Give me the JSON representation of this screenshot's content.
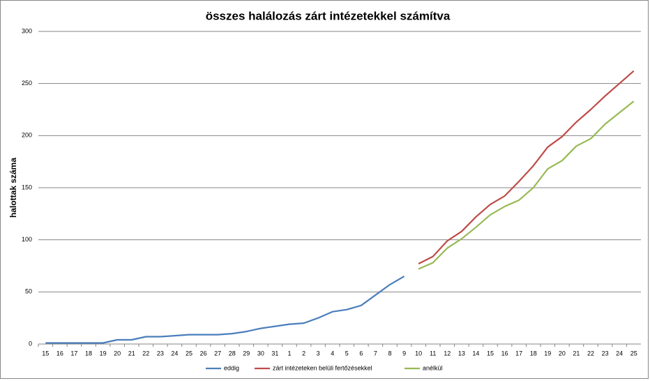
{
  "chart_data": {
    "type": "line",
    "title": "összes halálozás zárt intézetekkel számítva",
    "y_label": "halottak száma",
    "categories": [
      "15",
      "16",
      "17",
      "18",
      "19",
      "20",
      "21",
      "22",
      "23",
      "24",
      "25",
      "26",
      "27",
      "28",
      "29",
      "30",
      "31",
      "1",
      "2",
      "3",
      "4",
      "5",
      "6",
      "7",
      "8",
      "9",
      "10",
      "11",
      "12",
      "13",
      "14",
      "15",
      "16",
      "17",
      "18",
      "19",
      "20",
      "21",
      "22",
      "23",
      "24",
      "25"
    ],
    "series": [
      {
        "name": "eddig",
        "color": "#4a7ebb",
        "values": [
          1,
          1,
          1,
          1,
          1,
          4,
          4,
          7,
          7,
          8,
          9,
          9,
          9,
          10,
          12,
          15,
          17,
          19,
          20,
          25,
          31,
          33,
          37,
          47,
          57,
          65,
          null,
          null,
          null,
          null,
          null,
          null,
          null,
          null,
          null,
          null,
          null,
          null,
          null,
          null,
          null,
          null
        ]
      },
      {
        "name": "zárt intézeteken belüli fertőzésekkel",
        "color": "#be4b48",
        "values": [
          null,
          null,
          null,
          null,
          null,
          null,
          null,
          null,
          null,
          null,
          null,
          null,
          null,
          null,
          null,
          null,
          null,
          null,
          null,
          null,
          null,
          null,
          null,
          null,
          null,
          null,
          77,
          84,
          99,
          108,
          122,
          134,
          142,
          156,
          171,
          189,
          199,
          213,
          225,
          238,
          250,
          262
        ]
      },
      {
        "name": "anélkül",
        "color": "#98b954",
        "values": [
          null,
          null,
          null,
          null,
          null,
          null,
          null,
          null,
          null,
          null,
          null,
          null,
          null,
          null,
          null,
          null,
          null,
          null,
          null,
          null,
          null,
          null,
          null,
          null,
          null,
          null,
          72,
          78,
          92,
          101,
          112,
          124,
          132,
          138,
          150,
          168,
          176,
          190,
          197,
          211,
          222,
          233
        ]
      }
    ],
    "ylim": [
      0,
      300
    ],
    "yticks": [
      0,
      50,
      100,
      150,
      200,
      250,
      300
    ],
    "grid": true
  }
}
